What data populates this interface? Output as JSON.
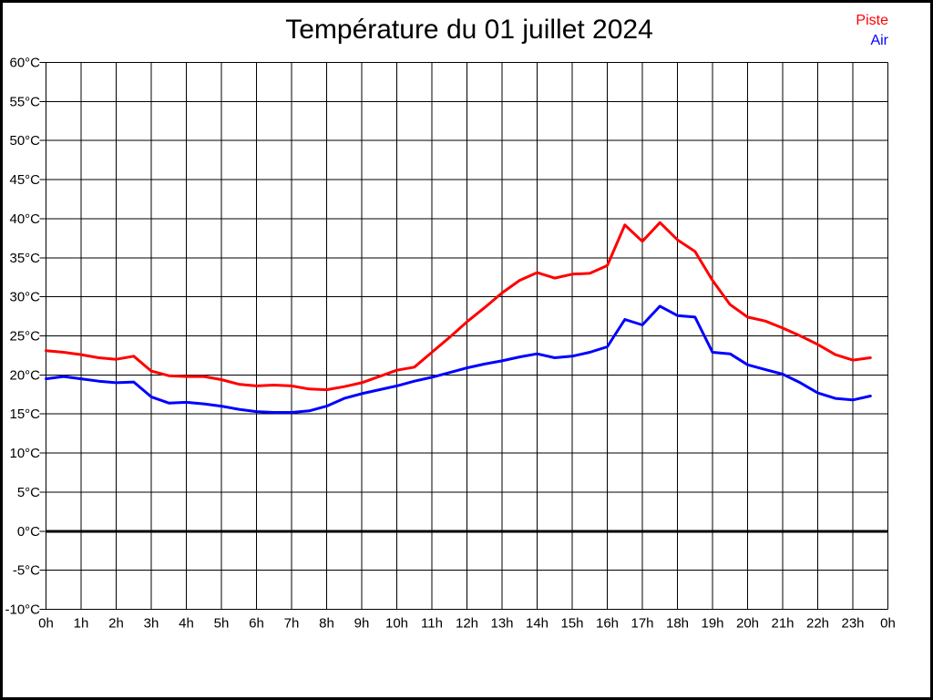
{
  "chart_data": {
    "type": "line",
    "title": "Température du 01 juillet 2024",
    "legend": [
      {
        "label": "Piste",
        "color": "#ff0000"
      },
      {
        "label": "Air",
        "color": "#0000ff"
      }
    ],
    "grid": true,
    "legend_position": "top-right",
    "background_color": "#ffffff",
    "grid_color": "#000000",
    "zero_line_value": 0,
    "x_axis": {
      "range": [
        0,
        24
      ],
      "tick_hours": [
        0,
        1,
        2,
        3,
        4,
        5,
        6,
        7,
        8,
        9,
        10,
        11,
        12,
        13,
        14,
        15,
        16,
        17,
        18,
        19,
        20,
        21,
        22,
        23,
        24
      ],
      "tick_labels": [
        "0h",
        "1h",
        "2h",
        "3h",
        "4h",
        "5h",
        "6h",
        "7h",
        "8h",
        "9h",
        "10h",
        "11h",
        "12h",
        "13h",
        "14h",
        "15h",
        "16h",
        "17h",
        "18h",
        "19h",
        "20h",
        "21h",
        "22h",
        "23h",
        "0h"
      ]
    },
    "y_axis": {
      "range": [
        -10,
        60
      ],
      "tick_values": [
        60,
        55,
        50,
        45,
        40,
        35,
        30,
        25,
        20,
        15,
        10,
        5,
        0,
        -5,
        -10
      ],
      "tick_labels": [
        "60°C",
        "55°C",
        "50°C",
        "45°C",
        "40°C",
        "35°C",
        "30°C",
        "25°C",
        "20°C",
        "15°C",
        "10°C",
        "5°C",
        "0°C",
        "-5°C",
        "-10°C"
      ]
    },
    "x": [
      0,
      0.5,
      1,
      1.5,
      2,
      2.5,
      3,
      3.5,
      4,
      4.5,
      5,
      5.5,
      6,
      6.5,
      7,
      7.5,
      8,
      8.5,
      9,
      9.5,
      10,
      10.5,
      11,
      11.5,
      12,
      12.5,
      13,
      13.5,
      14,
      14.5,
      15,
      15.5,
      16,
      16.5,
      17,
      17.5,
      18,
      18.5,
      19,
      19.5,
      20,
      20.5,
      21,
      21.5,
      22,
      22.5,
      23,
      23.5
    ],
    "series": [
      {
        "name": "Piste",
        "color": "#ff0000",
        "values": [
          23.1,
          22.9,
          22.6,
          22.2,
          22.0,
          22.4,
          20.5,
          19.9,
          19.8,
          19.8,
          19.4,
          18.8,
          18.6,
          18.7,
          18.6,
          18.2,
          18.1,
          18.5,
          19.0,
          19.8,
          20.6,
          21.0,
          22.9,
          24.8,
          26.8,
          28.6,
          30.5,
          32.1,
          33.1,
          32.4,
          32.9,
          33.0,
          34.0,
          39.2,
          37.1,
          39.5,
          37.3,
          35.8,
          32.1,
          29.0,
          27.4,
          26.9,
          26.0,
          25.0,
          23.9,
          22.6,
          21.9,
          22.2
        ]
      },
      {
        "name": "Air",
        "color": "#0000ff",
        "values": [
          19.5,
          19.8,
          19.5,
          19.2,
          19.0,
          19.1,
          17.2,
          16.4,
          16.5,
          16.3,
          16.0,
          15.6,
          15.3,
          15.2,
          15.2,
          15.4,
          16.0,
          17.0,
          17.6,
          18.1,
          18.6,
          19.2,
          19.7,
          20.3,
          20.9,
          21.4,
          21.8,
          22.3,
          22.7,
          22.2,
          22.4,
          22.9,
          23.6,
          27.1,
          26.4,
          28.8,
          27.6,
          27.4,
          22.9,
          22.7,
          21.3,
          20.7,
          20.1,
          19.0,
          17.7,
          17.0,
          16.8,
          17.3
        ]
      }
    ]
  }
}
